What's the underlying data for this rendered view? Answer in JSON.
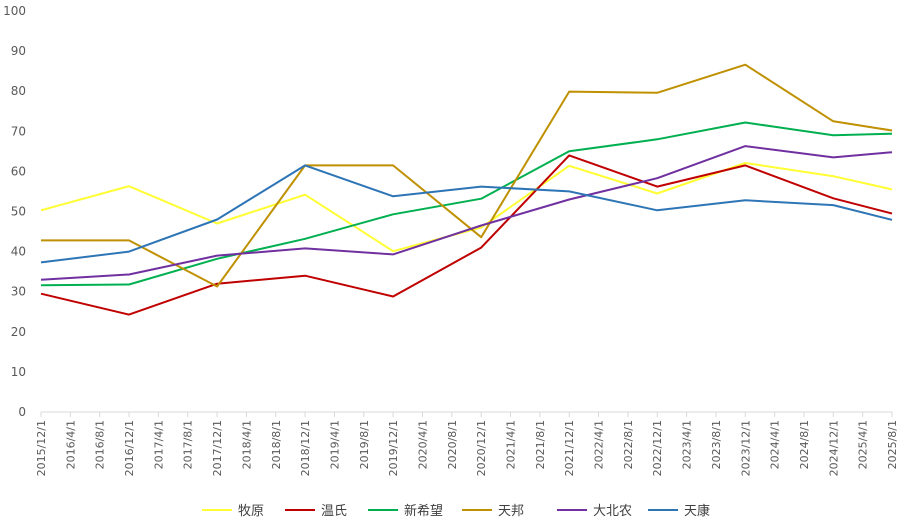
{
  "chart_data": {
    "type": "line",
    "title": "",
    "xlabel": "",
    "ylabel": "",
    "ylim": [
      0,
      100
    ],
    "yticks": [
      0,
      10,
      20,
      30,
      40,
      50,
      60,
      70,
      80,
      90,
      100
    ],
    "x_tick_labels": [
      "2015/12/1",
      "2016/4/1",
      "2016/8/1",
      "2016/12/1",
      "2017/4/1",
      "2017/8/1",
      "2017/12/1",
      "2018/4/1",
      "2018/8/1",
      "2018/12/1",
      "2019/4/1",
      "2019/8/1",
      "2019/12/1",
      "2020/4/1",
      "2020/8/1",
      "2020/12/1",
      "2021/4/1",
      "2021/8/1",
      "2021/12/1",
      "2022/4/1",
      "2022/8/1",
      "2022/12/1",
      "2023/4/1",
      "2023/8/1",
      "2023/12/1",
      "2024/4/1",
      "2024/8/1",
      "2024/12/1",
      "2025/4/1",
      "2025/8/1"
    ],
    "x": [
      "2015/12/1",
      "2016/12/1",
      "2017/12/1",
      "2018/12/1",
      "2019/12/1",
      "2020/12/1",
      "2021/12/1",
      "2022/12/1",
      "2023/12/1",
      "2024/12/1",
      "2025/8/1"
    ],
    "grid": false,
    "legend_position": "bottom",
    "series": [
      {
        "name": "牧原",
        "color": "#FFFF33",
        "values": [
          50.3,
          56.3,
          47.0,
          54.2,
          40.1,
          46.0,
          61.4,
          54.5,
          62.1,
          58.8,
          55.5
        ]
      },
      {
        "name": "温氏",
        "color": "#C00000",
        "values": [
          29.5,
          24.3,
          32.0,
          34.0,
          28.8,
          41.0,
          64.0,
          56.2,
          61.5,
          53.3,
          49.5
        ]
      },
      {
        "name": "新希望",
        "color": "#00B050",
        "values": [
          31.6,
          31.8,
          38.2,
          43.2,
          49.3,
          53.2,
          65.0,
          68.0,
          72.2,
          69.0,
          69.4
        ]
      },
      {
        "name": "天邦",
        "color": "#BF9000",
        "values": [
          42.8,
          42.8,
          31.3,
          61.5,
          61.5,
          43.6,
          79.9,
          79.6,
          86.6,
          72.5,
          70.2
        ]
      },
      {
        "name": "大北农",
        "color": "#7030A0",
        "values": [
          33.0,
          34.3,
          39.0,
          40.8,
          39.3,
          46.5,
          53.0,
          58.3,
          66.3,
          63.5,
          64.8
        ]
      },
      {
        "name": "天康",
        "color": "#2E75B6",
        "values": [
          37.3,
          40.0,
          48.0,
          61.5,
          53.8,
          56.2,
          55.0,
          50.3,
          52.8,
          51.6,
          47.9
        ]
      }
    ]
  }
}
